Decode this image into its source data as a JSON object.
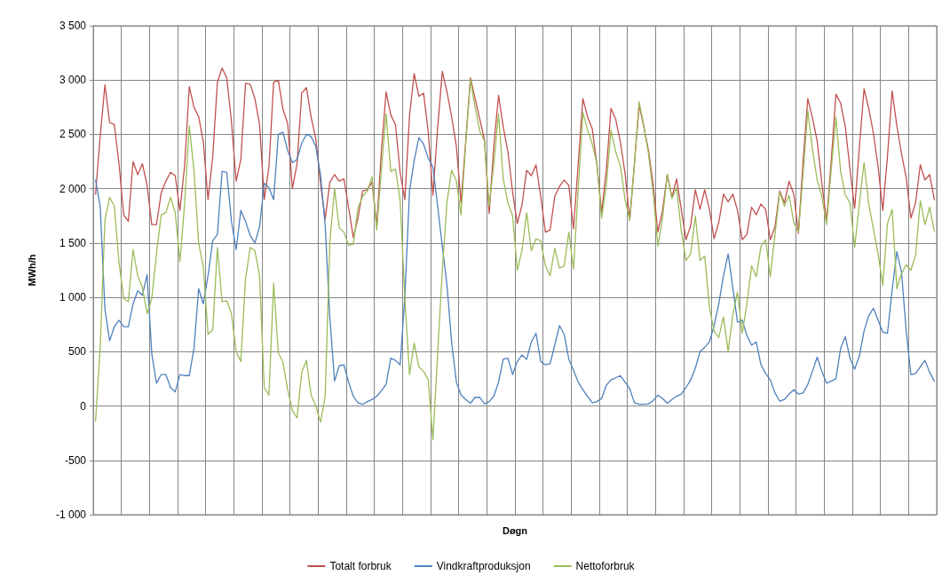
{
  "chart_data": {
    "type": "line",
    "xlabel": "Døgn",
    "ylabel": "MWh/h",
    "categories": [
      null,
      null,
      null,
      null,
      null,
      null,
      null,
      null,
      null,
      null,
      null,
      null,
      null,
      null,
      null,
      null,
      null,
      null,
      null,
      null,
      null,
      null,
      null,
      null,
      null,
      null,
      null,
      null,
      null,
      null,
      null,
      null,
      null,
      null,
      null,
      null,
      null,
      null,
      null,
      null,
      null,
      null,
      null,
      null,
      null,
      null,
      null,
      null,
      null,
      null,
      null,
      null,
      null,
      null,
      null,
      null,
      null,
      null,
      null,
      null,
      null,
      null,
      null,
      null,
      null,
      null,
      null,
      null,
      null,
      null,
      null,
      null,
      null,
      null,
      null,
      null,
      null,
      null,
      null,
      null,
      null,
      null,
      null,
      null,
      null,
      null,
      null,
      null,
      null,
      null,
      null,
      null,
      null,
      null,
      null,
      null,
      null,
      null,
      null,
      null,
      null,
      null,
      null,
      null,
      null,
      null,
      null,
      null,
      null,
      null,
      null,
      null,
      null,
      null,
      null,
      null,
      null,
      null,
      null,
      null,
      null,
      null,
      null,
      null,
      null,
      null,
      null,
      null,
      null,
      null,
      null,
      null,
      null,
      null,
      null,
      null,
      null,
      null,
      null,
      null,
      null,
      null,
      null,
      null,
      null,
      null,
      null,
      null,
      null,
      null,
      null,
      null,
      null,
      null,
      null,
      null,
      null,
      null,
      null,
      null,
      null,
      null,
      null,
      null,
      null,
      null,
      null,
      null,
      null,
      null,
      null,
      null,
      null,
      null,
      null,
      null,
      null,
      null,
      null,
      null
    ],
    "ylim": [
      -1000,
      3500
    ],
    "yticks": [
      {
        "value": -1000,
        "label": "-1 000"
      },
      -500,
      0,
      500,
      {
        "value": 1000,
        "label": "1 000"
      },
      {
        "value": 1500,
        "label": "1 500"
      },
      {
        "value": 2000,
        "label": "2 000"
      },
      {
        "value": 2500,
        "label": "2 500"
      },
      {
        "value": 3000,
        "label": "3 000"
      },
      {
        "value": 3500,
        "label": "3 500"
      }
    ],
    "tick_labels": "y",
    "grid": true,
    "legend": "bottom",
    "line_style": "solid",
    "series": [
      {
        "name": "Totalt forbruk",
        "color": "#c0504d",
        "values": [
          1950,
          2490,
          2955,
          2610,
          2590,
          2230,
          1760,
          1700,
          2250,
          2130,
          2230,
          2030,
          1670,
          1670,
          1960,
          2070,
          2150,
          2120,
          1800,
          2210,
          2940,
          2750,
          2665,
          2430,
          1900,
          2290,
          2980,
          3110,
          3020,
          2620,
          2070,
          2270,
          2970,
          2960,
          2830,
          2590,
          1900,
          2200,
          2980,
          3000,
          2730,
          2600,
          2000,
          2230,
          2880,
          2930,
          2660,
          2460,
          2050,
          1720,
          2060,
          2130,
          2070,
          2090,
          1830,
          1550,
          1730,
          1980,
          1990,
          2060,
          1660,
          2350,
          2890,
          2680,
          2590,
          2150,
          1900,
          2670,
          3060,
          2850,
          2880,
          2520,
          1940,
          2560,
          3080,
          2890,
          2660,
          2390,
          1870,
          2440,
          3020,
          2830,
          2640,
          2450,
          1770,
          2400,
          2860,
          2570,
          2340,
          1970,
          1680,
          1850,
          2170,
          2120,
          2220,
          1930,
          1600,
          1620,
          1930,
          2020,
          2080,
          2030,
          1630,
          2230,
          2830,
          2660,
          2550,
          2220,
          1780,
          2170,
          2740,
          2640,
          2430,
          2140,
          1710,
          2230,
          2770,
          2570,
          2350,
          2040,
          1600,
          1800,
          2130,
          1920,
          2090,
          1810,
          1530,
          1660,
          1990,
          1810,
          1990,
          1810,
          1540,
          1690,
          1950,
          1880,
          1950,
          1800,
          1530,
          1580,
          1830,
          1760,
          1860,
          1810,
          1530,
          1650,
          1980,
          1870,
          2070,
          1950,
          1590,
          2260,
          2830,
          2650,
          2440,
          2050,
          1700,
          2260,
          2870,
          2790,
          2570,
          2180,
          1820,
          2380,
          2920,
          2740,
          2510,
          2200,
          1800,
          2300,
          2900,
          2580,
          2320,
          2100,
          1730,
          1870,
          2220,
          2080,
          2130,
          1900
        ]
      },
      {
        "name": "Vindkraftproduksjon",
        "color": "#4f81bd",
        "values": [
          2080,
          1830,
          890,
          600,
          730,
          790,
          730,
          730,
          940,
          1060,
          1020,
          1210,
          480,
          210,
          290,
          290,
          170,
          130,
          290,
          280,
          280,
          530,
          1080,
          940,
          1200,
          1520,
          1580,
          2160,
          2150,
          1700,
          1440,
          1800,
          1700,
          1570,
          1500,
          1650,
          2050,
          2010,
          1900,
          2500,
          2520,
          2350,
          2240,
          2270,
          2420,
          2500,
          2480,
          2390,
          2130,
          1660,
          810,
          230,
          370,
          380,
          220,
          90,
          30,
          15,
          40,
          60,
          90,
          140,
          200,
          440,
          420,
          380,
          1000,
          1980,
          2260,
          2470,
          2410,
          2280,
          2200,
          1840,
          1470,
          1110,
          580,
          220,
          100,
          60,
          25,
          80,
          80,
          20,
          40,
          90,
          220,
          430,
          440,
          290,
          410,
          470,
          430,
          590,
          670,
          410,
          380,
          390,
          560,
          740,
          660,
          430,
          330,
          220,
          150,
          90,
          30,
          40,
          70,
          190,
          240,
          260,
          280,
          220,
          160,
          30,
          15,
          15,
          20,
          50,
          100,
          70,
          25,
          60,
          90,
          110,
          170,
          240,
          350,
          500,
          540,
          590,
          740,
          940,
          1200,
          1400,
          1090,
          770,
          790,
          650,
          560,
          590,
          380,
          300,
          240,
          120,
          45,
          60,
          110,
          150,
          110,
          120,
          200,
          320,
          450,
          320,
          210,
          230,
          250,
          530,
          640,
          440,
          340,
          460,
          690,
          830,
          900,
          790,
          680,
          670,
          1070,
          1420,
          1230,
          690,
          290,
          300,
          360,
          420,
          310,
          230
        ]
      },
      {
        "name": "Nettoforbruk",
        "color": "#9bbb59",
        "values": [
          -140,
          550,
          1710,
          1920,
          1840,
          1320,
          990,
          960,
          1440,
          1200,
          1090,
          850,
          990,
          1400,
          1760,
          1780,
          1920,
          1780,
          1330,
          1860,
          2580,
          2170,
          1500,
          1280,
          660,
          700,
          1460,
          960,
          970,
          850,
          500,
          410,
          1170,
          1460,
          1430,
          1200,
          170,
          100,
          1130,
          490,
          400,
          150,
          -40,
          -110,
          310,
          420,
          100,
          0,
          -150,
          90,
          1510,
          2000,
          1640,
          1600,
          1480,
          1490,
          1820,
          1930,
          1980,
          2110,
          1620,
          2180,
          2690,
          2160,
          2180,
          1890,
          1000,
          290,
          580,
          360,
          320,
          240,
          -310,
          480,
          1250,
          1880,
          2170,
          2070,
          1760,
          2420,
          3000,
          2750,
          2530,
          2440,
          1840,
          2230,
          2690,
          2090,
          1870,
          1750,
          1250,
          1430,
          1780,
          1430,
          1540,
          1520,
          1290,
          1200,
          1450,
          1270,
          1290,
          1600,
          1260,
          2000,
          2700,
          2540,
          2410,
          2230,
          1730,
          2030,
          2540,
          2340,
          2210,
          1900,
          1710,
          2240,
          2800,
          2580,
          2320,
          1960,
          1470,
          1730,
          2130,
          1910,
          2010,
          1610,
          1340,
          1400,
          1750,
          1340,
          1380,
          910,
          690,
          630,
          820,
          500,
          840,
          1050,
          670,
          940,
          1290,
          1190,
          1470,
          1530,
          1190,
          1580,
          1970,
          1840,
          1940,
          1690,
          1600,
          2140,
          2720,
          2360,
          2080,
          1930,
          1670,
          2180,
          2660,
          2160,
          1940,
          1870,
          1460,
          1860,
          2240,
          1860,
          1630,
          1400,
          1110,
          1680,
          1810,
          1080,
          1220,
          1300,
          1250,
          1390,
          1890,
          1670,
          1830,
          1610
        ]
      }
    ]
  }
}
